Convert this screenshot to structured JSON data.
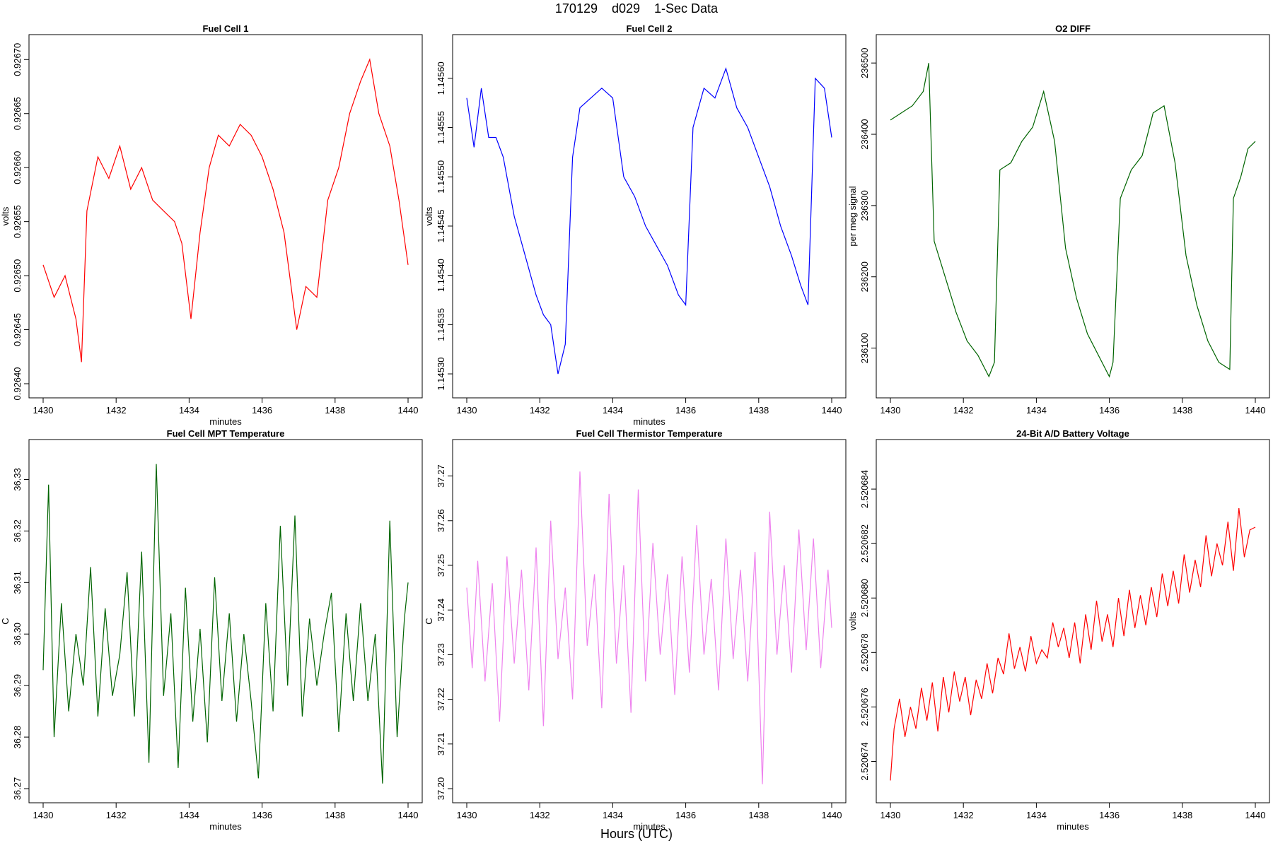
{
  "page": {
    "title": "170129    d029    1-Sec Data",
    "footer_label": "Hours (UTC)"
  },
  "chart_data": [
    {
      "type": "line",
      "title": "Fuel Cell 1",
      "xlabel": "minutes",
      "ylabel": "volts",
      "color": "#ff0000",
      "xlim": [
        1430,
        1440
      ],
      "ylim": [
        0.9264,
        0.92671
      ],
      "xticks": [
        "1430",
        "1432",
        "1434",
        "1436",
        "1438",
        "1440"
      ],
      "yticks": [
        "0.92640",
        "0.92645",
        "0.92650",
        "0.92655",
        "0.92660",
        "0.92665",
        "0.92670"
      ],
      "x": [
        1430.0,
        1430.3,
        1430.6,
        1430.9,
        1431.05,
        1431.2,
        1431.5,
        1431.8,
        1432.1,
        1432.4,
        1432.7,
        1433.0,
        1433.3,
        1433.6,
        1433.8,
        1434.05,
        1434.3,
        1434.55,
        1434.8,
        1435.1,
        1435.4,
        1435.7,
        1436.0,
        1436.3,
        1436.6,
        1436.95,
        1437.2,
        1437.5,
        1437.8,
        1438.1,
        1438.4,
        1438.7,
        1438.95,
        1439.2,
        1439.5,
        1439.75,
        1440.0
      ],
      "y": [
        0.92651,
        0.92648,
        0.9265,
        0.92646,
        0.92642,
        0.92656,
        0.92661,
        0.92659,
        0.92662,
        0.92658,
        0.9266,
        0.92657,
        0.92656,
        0.92655,
        0.92653,
        0.92646,
        0.92654,
        0.9266,
        0.92663,
        0.92662,
        0.92664,
        0.92663,
        0.92661,
        0.92658,
        0.92654,
        0.92645,
        0.92649,
        0.92648,
        0.92657,
        0.9266,
        0.92665,
        0.92668,
        0.9267,
        0.92665,
        0.92662,
        0.92657,
        0.92651
      ]
    },
    {
      "type": "line",
      "title": "Fuel Cell 2",
      "xlabel": "minutes",
      "ylabel": "volts",
      "color": "#0000ff",
      "xlim": [
        1430,
        1440
      ],
      "ylim": [
        1.14529,
        1.14563
      ],
      "xticks": [
        "1430",
        "1432",
        "1434",
        "1436",
        "1438",
        "1440"
      ],
      "yticks": [
        "1.14530",
        "1.14535",
        "1.14540",
        "1.14545",
        "1.14550",
        "1.14555",
        "1.14560"
      ],
      "x": [
        1430.0,
        1430.2,
        1430.4,
        1430.6,
        1430.8,
        1431.0,
        1431.3,
        1431.6,
        1431.9,
        1432.1,
        1432.3,
        1432.5,
        1432.7,
        1432.9,
        1433.1,
        1433.4,
        1433.7,
        1434.0,
        1434.3,
        1434.6,
        1434.9,
        1435.2,
        1435.5,
        1435.8,
        1436.0,
        1436.2,
        1436.5,
        1436.8,
        1437.1,
        1437.4,
        1437.7,
        1438.0,
        1438.3,
        1438.6,
        1438.9,
        1439.15,
        1439.35,
        1439.55,
        1439.8,
        1440.0
      ],
      "y": [
        1.14558,
        1.14553,
        1.14559,
        1.14554,
        1.14554,
        1.14552,
        1.14546,
        1.14542,
        1.14538,
        1.14536,
        1.14535,
        1.1453,
        1.14533,
        1.14552,
        1.14557,
        1.14558,
        1.14559,
        1.14558,
        1.1455,
        1.14548,
        1.14545,
        1.14543,
        1.14541,
        1.14538,
        1.14537,
        1.14555,
        1.14559,
        1.14558,
        1.14561,
        1.14557,
        1.14555,
        1.14552,
        1.14549,
        1.14545,
        1.14542,
        1.14539,
        1.14537,
        1.1456,
        1.14559,
        1.14554
      ]
    },
    {
      "type": "line",
      "title": "O2 DIFF",
      "xlabel": "",
      "ylabel": "per meg signal",
      "color": "#006400",
      "xlim": [
        1430,
        1440
      ],
      "ylim": [
        236050,
        236520
      ],
      "xticks": [
        "1430",
        "1432",
        "1434",
        "1436",
        "1438",
        "1440"
      ],
      "yticks": [
        "236100",
        "236200",
        "236300",
        "236400",
        "236500"
      ],
      "x": [
        1430.0,
        1430.3,
        1430.6,
        1430.9,
        1431.05,
        1431.2,
        1431.5,
        1431.8,
        1432.1,
        1432.4,
        1432.7,
        1432.85,
        1433.0,
        1433.3,
        1433.6,
        1433.9,
        1434.2,
        1434.5,
        1434.8,
        1435.1,
        1435.4,
        1435.7,
        1436.0,
        1436.1,
        1436.3,
        1436.6,
        1436.9,
        1437.2,
        1437.5,
        1437.8,
        1438.1,
        1438.4,
        1438.7,
        1439.0,
        1439.3,
        1439.4,
        1439.6,
        1439.8,
        1440.0
      ],
      "y": [
        236420,
        236430,
        236440,
        236460,
        236500,
        236250,
        236200,
        236150,
        236110,
        236090,
        236060,
        236080,
        236350,
        236360,
        236390,
        236410,
        236460,
        236390,
        236240,
        236170,
        236120,
        236090,
        236060,
        236080,
        236310,
        236350,
        236370,
        236430,
        236440,
        236360,
        236230,
        236160,
        236110,
        236080,
        236070,
        236310,
        236340,
        236380,
        236390
      ]
    },
    {
      "type": "line",
      "title": "Fuel Cell MPT Temperature",
      "xlabel": "minutes",
      "ylabel": "C",
      "color": "#006400",
      "xlim": [
        1430,
        1440
      ],
      "ylim": [
        36.27,
        36.335
      ],
      "xticks": [
        "1430",
        "1432",
        "1434",
        "1436",
        "1438",
        "1440"
      ],
      "yticks": [
        "36.27",
        "36.28",
        "36.29",
        "36.30",
        "36.31",
        "36.32",
        "36.33"
      ],
      "x": [
        1430.0,
        1430.15,
        1430.3,
        1430.5,
        1430.7,
        1430.9,
        1431.1,
        1431.3,
        1431.5,
        1431.7,
        1431.9,
        1432.1,
        1432.3,
        1432.5,
        1432.7,
        1432.9,
        1433.1,
        1433.3,
        1433.5,
        1433.7,
        1433.9,
        1434.1,
        1434.3,
        1434.5,
        1434.7,
        1434.9,
        1435.1,
        1435.3,
        1435.5,
        1435.7,
        1435.9,
        1436.1,
        1436.3,
        1436.5,
        1436.7,
        1436.9,
        1437.1,
        1437.3,
        1437.5,
        1437.7,
        1437.9,
        1438.1,
        1438.3,
        1438.5,
        1438.7,
        1438.9,
        1439.1,
        1439.3,
        1439.5,
        1439.7,
        1439.9,
        1440.0
      ],
      "y": [
        36.293,
        36.329,
        36.28,
        36.306,
        36.285,
        36.3,
        36.29,
        36.313,
        36.284,
        36.305,
        36.288,
        36.296,
        36.312,
        36.284,
        36.316,
        36.275,
        36.333,
        36.288,
        36.304,
        36.274,
        36.309,
        36.283,
        36.301,
        36.279,
        36.311,
        36.287,
        36.304,
        36.283,
        36.3,
        36.287,
        36.272,
        36.306,
        36.285,
        36.321,
        36.29,
        36.323,
        36.284,
        36.303,
        36.29,
        36.3,
        36.308,
        36.281,
        36.304,
        36.287,
        36.306,
        36.287,
        36.3,
        36.271,
        36.322,
        36.28,
        36.303,
        36.31
      ]
    },
    {
      "type": "line",
      "title": "Fuel Cell Thermistor Temperature",
      "xlabel": "minutes",
      "ylabel": "C",
      "color": "#ee82ee",
      "xlim": [
        1430,
        1440
      ],
      "ylim": [
        37.2,
        37.275
      ],
      "xticks": [
        "1430",
        "1432",
        "1434",
        "1436",
        "1438",
        "1440"
      ],
      "yticks": [
        "37.20",
        "37.21",
        "37.22",
        "37.23",
        "37.24",
        "37.25",
        "37.26",
        "37.27"
      ],
      "x": [
        1430.0,
        1430.15,
        1430.3,
        1430.5,
        1430.7,
        1430.9,
        1431.1,
        1431.3,
        1431.5,
        1431.7,
        1431.9,
        1432.1,
        1432.3,
        1432.5,
        1432.7,
        1432.9,
        1433.1,
        1433.3,
        1433.5,
        1433.7,
        1433.9,
        1434.1,
        1434.3,
        1434.5,
        1434.7,
        1434.9,
        1435.1,
        1435.3,
        1435.5,
        1435.7,
        1435.9,
        1436.1,
        1436.3,
        1436.5,
        1436.7,
        1436.9,
        1437.1,
        1437.3,
        1437.5,
        1437.7,
        1437.9,
        1438.1,
        1438.3,
        1438.5,
        1438.7,
        1438.9,
        1439.1,
        1439.3,
        1439.5,
        1439.7,
        1439.9,
        1440.0
      ],
      "y": [
        37.245,
        37.227,
        37.251,
        37.224,
        37.246,
        37.215,
        37.252,
        37.228,
        37.249,
        37.222,
        37.254,
        37.214,
        37.26,
        37.229,
        37.245,
        37.22,
        37.271,
        37.232,
        37.248,
        37.218,
        37.266,
        37.228,
        37.25,
        37.217,
        37.267,
        37.224,
        37.255,
        37.23,
        37.248,
        37.221,
        37.252,
        37.226,
        37.259,
        37.23,
        37.247,
        37.222,
        37.256,
        37.229,
        37.249,
        37.224,
        37.253,
        37.201,
        37.262,
        37.23,
        37.25,
        37.226,
        37.258,
        37.231,
        37.256,
        37.227,
        37.249,
        37.236
      ]
    },
    {
      "type": "line",
      "title": "24-Bit A/D Battery Voltage",
      "xlabel": "minutes",
      "ylabel": "volts",
      "color": "#ff0000",
      "xlim": [
        1430,
        1440
      ],
      "ylim": [
        2.520673,
        2.5206853
      ],
      "xticks": [
        "1430",
        "1432",
        "1434",
        "1436",
        "1438",
        "1440"
      ],
      "yticks": [
        "2.520674",
        "2.520676",
        "2.520678",
        "2.520680",
        "2.520682",
        "2.520684"
      ],
      "x": [
        1430.0,
        1430.1,
        1430.25,
        1430.4,
        1430.55,
        1430.7,
        1430.85,
        1431.0,
        1431.15,
        1431.3,
        1431.45,
        1431.6,
        1431.75,
        1431.9,
        1432.05,
        1432.2,
        1432.35,
        1432.5,
        1432.65,
        1432.8,
        1432.95,
        1433.1,
        1433.25,
        1433.4,
        1433.55,
        1433.7,
        1433.85,
        1434.0,
        1434.15,
        1434.3,
        1434.45,
        1434.6,
        1434.75,
        1434.9,
        1435.05,
        1435.2,
        1435.35,
        1435.5,
        1435.65,
        1435.8,
        1435.95,
        1436.1,
        1436.25,
        1436.4,
        1436.55,
        1436.7,
        1436.85,
        1437.0,
        1437.15,
        1437.3,
        1437.45,
        1437.6,
        1437.75,
        1437.9,
        1438.05,
        1438.2,
        1438.35,
        1438.5,
        1438.65,
        1438.8,
        1438.95,
        1439.1,
        1439.25,
        1439.4,
        1439.55,
        1439.7,
        1439.85,
        1440.0
      ],
      "y": [
        2.5206733,
        2.5206752,
        2.5206763,
        2.5206749,
        2.520676,
        2.5206752,
        2.5206767,
        2.5206755,
        2.5206769,
        2.5206751,
        2.5206771,
        2.5206758,
        2.5206773,
        2.5206762,
        2.5206771,
        2.5206757,
        2.520677,
        2.5206763,
        2.5206776,
        2.5206765,
        2.5206778,
        2.5206772,
        2.5206787,
        2.5206774,
        2.5206782,
        2.5206773,
        2.5206786,
        2.5206776,
        2.5206781,
        2.5206778,
        2.5206791,
        2.5206782,
        2.5206789,
        2.5206778,
        2.5206791,
        2.5206776,
        2.5206794,
        2.5206781,
        2.5206799,
        2.5206784,
        2.5206794,
        2.5206782,
        2.52068,
        2.5206786,
        2.5206803,
        2.5206789,
        2.5206801,
        2.520679,
        2.5206804,
        2.5206793,
        2.5206809,
        2.5206797,
        2.520681,
        2.5206798,
        2.5206816,
        2.5206802,
        2.5206814,
        2.5206804,
        2.5206823,
        2.5206808,
        2.520682,
        2.5206812,
        2.5206828,
        2.520681,
        2.5206833,
        2.5206815,
        2.5206825,
        2.5206826
      ]
    }
  ]
}
